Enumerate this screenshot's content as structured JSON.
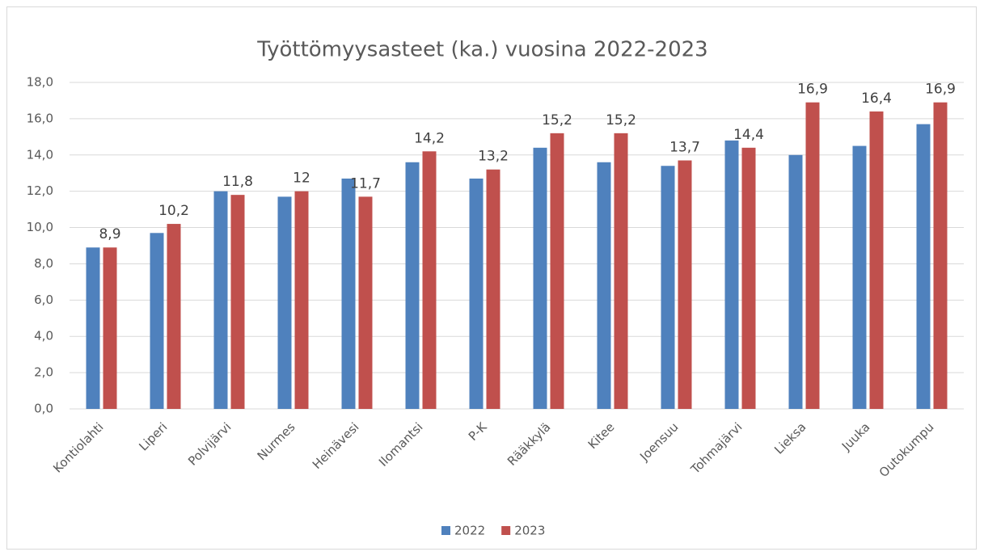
{
  "chart_data": {
    "type": "bar",
    "title": "Työttömyysasteet (ka.) vuosina 2022-2023",
    "categories": [
      "Kontiolahti",
      "Liperi",
      "Polvijärvi",
      "Nurmes",
      "Heinävesi",
      "Ilomantsi",
      "P-K",
      "Rääkkylä",
      "Kitee",
      "Joensuu",
      "Tohmajärvi",
      "Lieksa",
      "Juuka",
      "Outokumpu"
    ],
    "series": [
      {
        "name": "2022",
        "color": "#4f81bd",
        "values": [
          8.9,
          9.7,
          12.0,
          11.7,
          12.7,
          13.6,
          12.7,
          14.4,
          13.6,
          13.4,
          14.8,
          14.0,
          14.5,
          15.7
        ]
      },
      {
        "name": "2023",
        "color": "#c0504d",
        "values": [
          8.9,
          10.2,
          11.8,
          12,
          11.7,
          14.2,
          13.2,
          15.2,
          15.2,
          13.7,
          14.4,
          16.9,
          16.4,
          16.9
        ],
        "value_labels": [
          "8,9",
          "10,2",
          "11,8",
          "12",
          "11,7",
          "14,2",
          "13,2",
          "15,2",
          "15,2",
          "13,7",
          "14,4",
          "16,9",
          "16,4",
          "16,9"
        ]
      }
    ],
    "ylim": [
      0,
      18
    ],
    "yticks": [
      {
        "value": 0,
        "label": "0,0"
      },
      {
        "value": 2,
        "label": "2,0"
      },
      {
        "value": 4,
        "label": "4,0"
      },
      {
        "value": 6,
        "label": "6,0"
      },
      {
        "value": 8,
        "label": "8,0"
      },
      {
        "value": 10,
        "label": "10,0"
      },
      {
        "value": 12,
        "label": "12,0"
      },
      {
        "value": 14,
        "label": "14,0"
      },
      {
        "value": 16,
        "label": "16,0"
      },
      {
        "value": 18,
        "label": "18,0"
      }
    ],
    "grid": true,
    "legend": "bottom"
  }
}
